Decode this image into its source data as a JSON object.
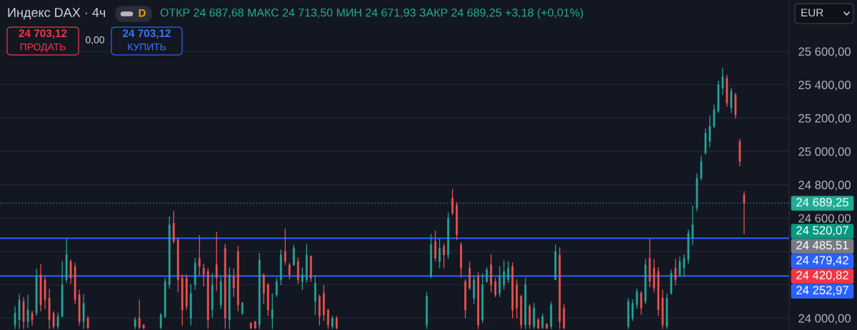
{
  "chart_data": {
    "type": "candlestick",
    "title": "Индекс DAX · 4ч",
    "subtitle": "ОТКР 24 687,68 МАКС 24 713,50 МИН 24 671,93 ЗАКР 24 689,25 +3,18 (+0,01%)",
    "categories": [
      null,
      null,
      null,
      null,
      null,
      null,
      null,
      null,
      null,
      null,
      null,
      null,
      null,
      null,
      null,
      null,
      null,
      null,
      null,
      null,
      null,
      null,
      null,
      null,
      null,
      null,
      null,
      null,
      null,
      null,
      null,
      null,
      null,
      null,
      null,
      null,
      null,
      null,
      null,
      null,
      null,
      null,
      null,
      null,
      null,
      null,
      null,
      null,
      null,
      null,
      null,
      null,
      null,
      null,
      null,
      null,
      null,
      null,
      null,
      null,
      null,
      null,
      null,
      null,
      null,
      null,
      null,
      null,
      null,
      null,
      null,
      null,
      null,
      null,
      null,
      null,
      null,
      null,
      null,
      null,
      null,
      null,
      null,
      null,
      null,
      null,
      null,
      null,
      null,
      null,
      null,
      null,
      null,
      null,
      null,
      null,
      null,
      null,
      null,
      null,
      null,
      null,
      null,
      null,
      null,
      null,
      null,
      null,
      null,
      null,
      null,
      null,
      null,
      null,
      null,
      null,
      null,
      null,
      null,
      null,
      null,
      null,
      null,
      null,
      null,
      null,
      null,
      null,
      null,
      null,
      null,
      null,
      null,
      null,
      null,
      null,
      null,
      null,
      null,
      null,
      null,
      null,
      null,
      null,
      null,
      null,
      null,
      null,
      null,
      null,
      null,
      null,
      null,
      null,
      null,
      null,
      null,
      null,
      null,
      null,
      null,
      null,
      null,
      null,
      null,
      null,
      null,
      null,
      null,
      null,
      null,
      null,
      null,
      null,
      null,
      null,
      null,
      null,
      null,
      null,
      null,
      null,
      null,
      null
    ],
    "ohlc": [
      null,
      null,
      null,
      [
        23960,
        24072,
        23935,
        24030
      ],
      [
        23990,
        24145,
        23935,
        24110
      ],
      [
        24100,
        24127,
        23935,
        23980
      ],
      [
        23980,
        24141,
        23941,
        24050
      ],
      [
        24030,
        24044,
        23956,
        23990
      ],
      [
        24030,
        24298,
        24013,
        24250
      ],
      [
        24260,
        24326,
        24041,
        24080
      ],
      [
        24230,
        24248,
        24055,
        24110
      ],
      [
        24120,
        24176,
        23935,
        23990
      ],
      [
        24030,
        24041,
        23935,
        23950
      ],
      [
        23950,
        24034,
        23935,
        24010
      ],
      [
        24010,
        24343,
        24006,
        24200
      ],
      [
        24230,
        24479,
        24212,
        24380
      ],
      [
        24340,
        24352,
        24205,
        24240
      ],
      [
        24310,
        24333,
        24084,
        24110
      ],
      [
        24140,
        24170,
        23956,
        23980
      ],
      [
        23980,
        24144,
        23935,
        24090
      ],
      [
        24000,
        24013,
        23935,
        23940
      ],
      null,
      null,
      null,
      null,
      null,
      null,
      null,
      null,
      null,
      null,
      [
        23950,
        24006,
        23935,
        23990
      ],
      [
        24000,
        24112,
        23935,
        23945
      ],
      [
        23960,
        23963,
        23935,
        23940
      ],
      null,
      null,
      null,
      [
        23945,
        24030,
        23935,
        24020
      ],
      [
        24010,
        24241,
        24001,
        24220
      ],
      [
        24200,
        24611,
        24177,
        24560
      ],
      [
        24570,
        24643,
        24447,
        24460
      ],
      [
        24470,
        24483,
        24155,
        24230
      ],
      [
        24240,
        24262,
        23956,
        24050
      ],
      [
        24240,
        24262,
        24049,
        24070
      ],
      [
        24000,
        24205,
        23956,
        24150
      ],
      [
        24200,
        24362,
        24170,
        24330
      ],
      [
        24360,
        24497,
        24255,
        24310
      ],
      [
        24300,
        24326,
        24191,
        24260
      ],
      [
        24280,
        24301,
        23935,
        23990
      ],
      [
        24050,
        24269,
        24001,
        24200
      ],
      [
        24320,
        24519,
        24162,
        24240
      ],
      [
        24080,
        24248,
        24055,
        24220
      ],
      [
        24420,
        24447,
        23935,
        24000
      ],
      [
        23990,
        24305,
        23935,
        24260
      ],
      [
        24250,
        24298,
        24127,
        24180
      ],
      [
        24400,
        24433,
        24041,
        24080
      ],
      [
        24030,
        24098,
        24020,
        24090
      ],
      null,
      [
        23970,
        23977,
        23935,
        23940
      ],
      [
        23980,
        23984,
        23935,
        23940
      ],
      [
        23960,
        24390,
        23935,
        24350
      ],
      [
        24260,
        24269,
        24084,
        24150
      ],
      [
        24200,
        24212,
        24013,
        24050
      ],
      [
        24000,
        24148,
        23935,
        24050
      ],
      [
        24140,
        24241,
        24127,
        24220
      ],
      [
        24230,
        24412,
        24198,
        24380
      ],
      [
        24400,
        24537,
        24319,
        24340
      ],
      [
        24320,
        24333,
        24233,
        24260
      ],
      [
        24320,
        24440,
        24312,
        24420
      ],
      [
        24340,
        24362,
        24205,
        24230
      ],
      [
        24220,
        24305,
        24169,
        24260
      ],
      [
        24230,
        24443,
        24212,
        24380
      ],
      [
        24370,
        24376,
        24219,
        24240
      ],
      [
        24100,
        24255,
        24020,
        24210
      ],
      [
        24130,
        24141,
        23956,
        24010
      ],
      [
        24150,
        24198,
        23984,
        24020
      ],
      [
        24050,
        24055,
        23935,
        23960
      ],
      [
        23950,
        24013,
        23935,
        24000
      ],
      [
        24000,
        24013,
        23935,
        23940
      ],
      null,
      null,
      null,
      null,
      null,
      null,
      null,
      null,
      null,
      null,
      null,
      null,
      null,
      null,
      null,
      null,
      null,
      null,
      null,
      null,
      [
        23960,
        24155,
        23935,
        24130
      ],
      [
        24250,
        24504,
        24241,
        24440
      ],
      [
        24460,
        24526,
        24341,
        24360
      ],
      [
        24340,
        24476,
        24298,
        24420
      ],
      [
        24430,
        24447,
        24298,
        24380
      ],
      [
        24380,
        24633,
        24355,
        24600
      ],
      [
        24720,
        24775,
        24618,
        24630
      ],
      [
        24680,
        24697,
        24469,
        24500
      ],
      [
        24440,
        24455,
        24241,
        24300
      ],
      [
        24220,
        24234,
        23999,
        24050
      ],
      [
        24300,
        24341,
        24170,
        24180
      ],
      [
        24120,
        24255,
        24084,
        24230
      ],
      [
        24250,
        24276,
        23935,
        23960
      ],
      [
        23990,
        24269,
        23970,
        24200
      ],
      [
        24220,
        24305,
        24212,
        24290
      ],
      [
        24320,
        24383,
        24155,
        24200
      ],
      [
        24220,
        24241,
        24127,
        24140
      ],
      [
        24150,
        24312,
        24127,
        24250
      ],
      [
        24200,
        24348,
        24170,
        24280
      ],
      [
        24230,
        24341,
        24212,
        24300
      ],
      [
        24310,
        24334,
        23999,
        24050
      ],
      [
        24200,
        24234,
        23999,
        24060
      ],
      [
        24130,
        24141,
        23935,
        23960
      ],
      [
        23960,
        24241,
        23935,
        24200
      ],
      [
        24070,
        24084,
        23935,
        23960
      ],
      [
        23950,
        24091,
        23935,
        24060
      ],
      [
        23990,
        23999,
        23935,
        23940
      ],
      [
        23945,
        24027,
        23935,
        24010
      ],
      [
        23965,
        23970,
        23935,
        23940
      ],
      [
        23950,
        24098,
        23935,
        24080
      ],
      [
        24230,
        24440,
        24227,
        24400
      ],
      [
        24380,
        24426,
        23935,
        23980
      ],
      [
        24060,
        24084,
        23935,
        23940
      ],
      null,
      null,
      null,
      null,
      null,
      null,
      null,
      null,
      null,
      null,
      null,
      null,
      null,
      null,
      [
        23950,
        24120,
        23935,
        24100
      ],
      [
        24000,
        24112,
        23984,
        24090
      ],
      [
        24080,
        24177,
        24056,
        24160
      ],
      [
        24150,
        24162,
        24020,
        24060
      ],
      [
        24100,
        24355,
        24084,
        24320
      ],
      [
        24360,
        24476,
        24184,
        24220
      ],
      [
        24300,
        24355,
        24155,
        24180
      ],
      [
        24280,
        24305,
        24013,
        24050
      ],
      [
        24120,
        24170,
        23935,
        23960
      ],
      [
        23950,
        24148,
        23935,
        24120
      ],
      [
        24150,
        24291,
        24141,
        24270
      ],
      [
        24300,
        24355,
        24198,
        24230
      ],
      [
        24260,
        24369,
        24248,
        24340
      ],
      [
        24300,
        24383,
        24248,
        24360
      ],
      [
        24350,
        24533,
        24326,
        24510
      ],
      [
        24480,
        24675,
        24440,
        24560
      ],
      [
        24660,
        24868,
        24640,
        24840
      ],
      [
        24840,
        24975,
        24825,
        24940
      ],
      [
        24990,
        25139,
        24982,
        25110
      ],
      [
        25060,
        25217,
        25025,
        25150
      ],
      [
        25150,
        25281,
        25139,
        25250
      ],
      [
        25240,
        25424,
        25231,
        25400
      ],
      [
        25380,
        25502,
        25338,
        25450
      ],
      [
        25440,
        25459,
        25267,
        25290
      ],
      [
        25260,
        25381,
        25231,
        25360
      ],
      [
        25340,
        25352,
        25196,
        25220
      ],
      [
        25060,
        25074,
        24910,
        24940
      ],
      [
        24740,
        24761,
        24504,
        24689.25
      ],
      null,
      null,
      null,
      null,
      null,
      null,
      null,
      null,
      null,
      null
    ],
    "ylim": [
      23929,
      25908
    ],
    "yticks": [
      {
        "value": 24000,
        "label": "24 000,00"
      },
      {
        "value": 24200,
        "label": null
      },
      {
        "value": 24400,
        "label": null
      },
      {
        "value": 24600,
        "label": "24 600,00"
      },
      {
        "value": 24800,
        "label": "24 800,00"
      },
      {
        "value": 25000,
        "label": "25 000,00"
      },
      {
        "value": 25200,
        "label": "25 200,00"
      },
      {
        "value": 25400,
        "label": "25 400,00"
      },
      {
        "value": 25600,
        "label": "25 600,00"
      }
    ],
    "tick_labels": "y",
    "grid": "y",
    "ref_lines": [
      {
        "axis": "y",
        "value": 24689.25,
        "label": "24 689,25",
        "color": "#22ab94",
        "line_style": "dotted"
      },
      {
        "axis": "y",
        "value": 24479.42,
        "label": "24 479,42",
        "color": "#2962ff",
        "line_style": "solid"
      },
      {
        "axis": "y",
        "value": 24252.97,
        "label": "24 252,97",
        "color": "#2962ff",
        "line_style": "solid"
      }
    ],
    "annotations": [
      "D",
      "24 703,12",
      "ПРОДАТЬ",
      "0,00",
      "24 703,12",
      "КУПИТЬ",
      "EUR",
      "24 520,07",
      "24 485,51",
      "24 420,82"
    ]
  }
}
